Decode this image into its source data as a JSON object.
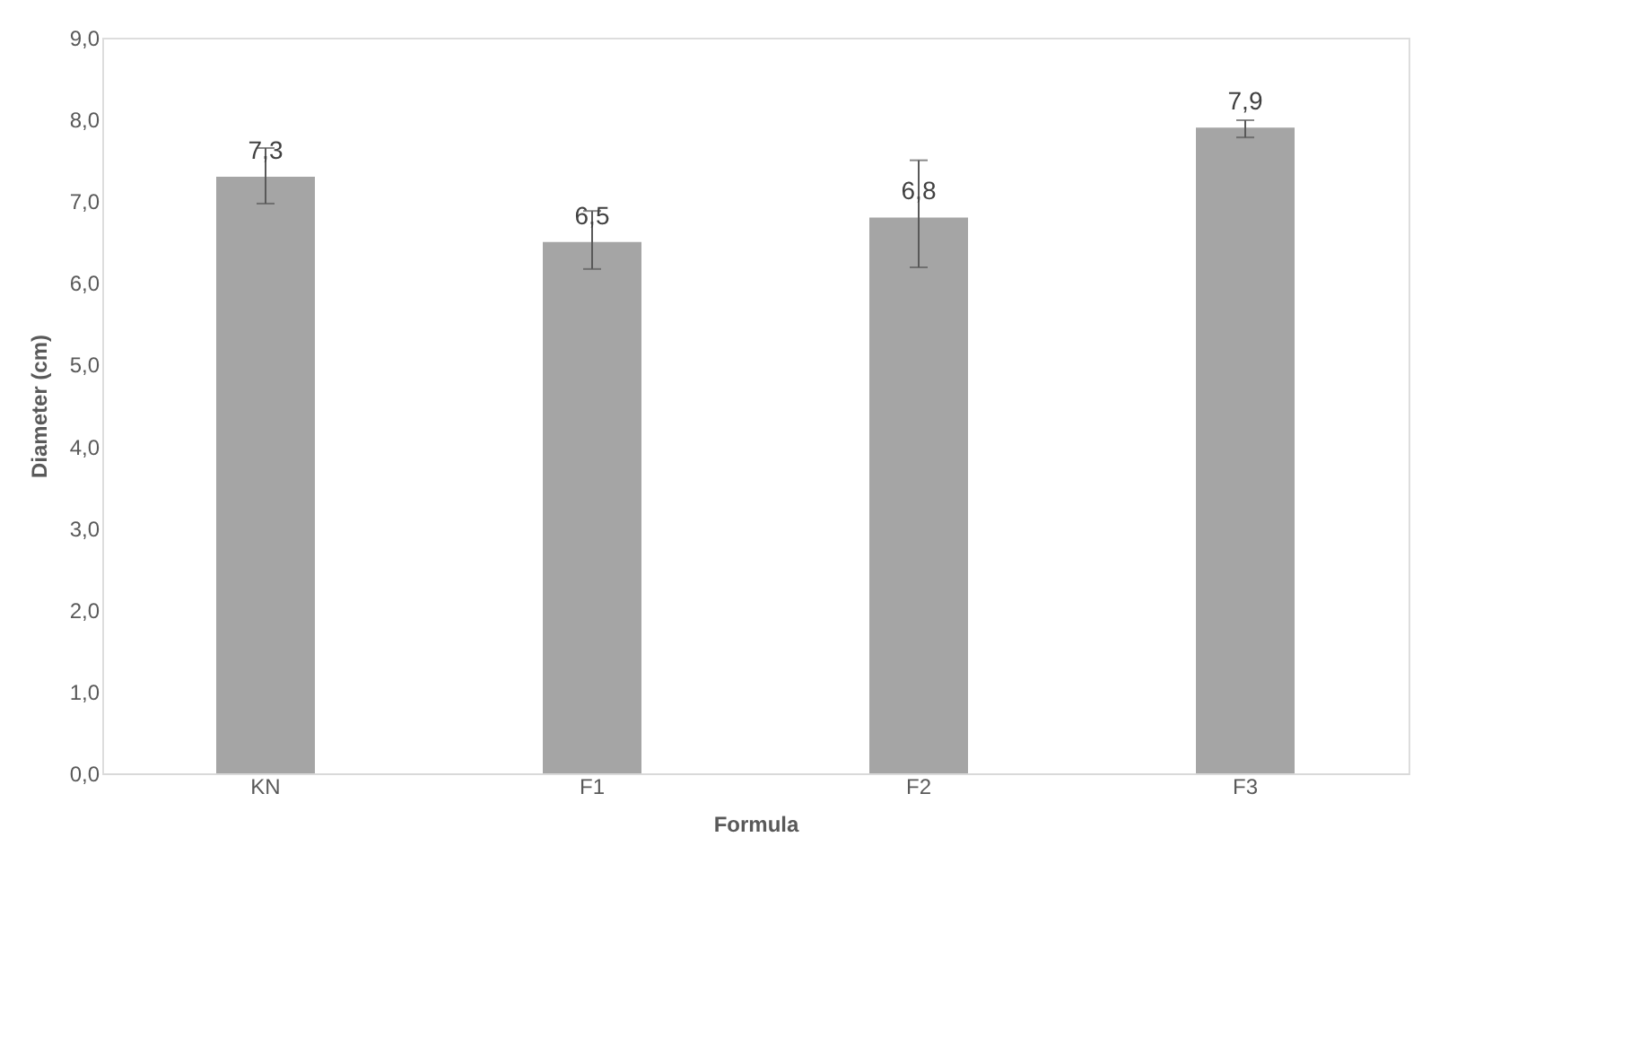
{
  "chart_data": {
    "type": "bar",
    "xlabel": "Formula",
    "ylabel": "Diameter (cm)",
    "categories": [
      "KN",
      "F1",
      "F2",
      "F3"
    ],
    "values": [
      7.3,
      6.5,
      6.8,
      7.9
    ],
    "color": "#a5a5a5",
    "errors": [
      [
        6.97,
        7.65
      ],
      [
        6.17,
        6.88
      ],
      [
        6.19,
        7.5
      ],
      [
        7.78,
        7.99
      ]
    ],
    "value_labels": [
      "7,3",
      "6,5",
      "6,8",
      "7,9"
    ],
    "ylim": [
      0,
      9
    ],
    "yticks": [
      {
        "value": 0,
        "label": "0,0"
      },
      {
        "value": 1,
        "label": "1,0"
      },
      {
        "value": 2,
        "label": "2,0"
      },
      {
        "value": 3,
        "label": "3,0"
      },
      {
        "value": 4,
        "label": "4,0"
      },
      {
        "value": 5,
        "label": "5,0"
      },
      {
        "value": 6,
        "label": "6,0"
      },
      {
        "value": 7,
        "label": "7,0"
      },
      {
        "value": 8,
        "label": "8,0"
      },
      {
        "value": 9,
        "label": "9,0"
      }
    ],
    "grid": false
  }
}
